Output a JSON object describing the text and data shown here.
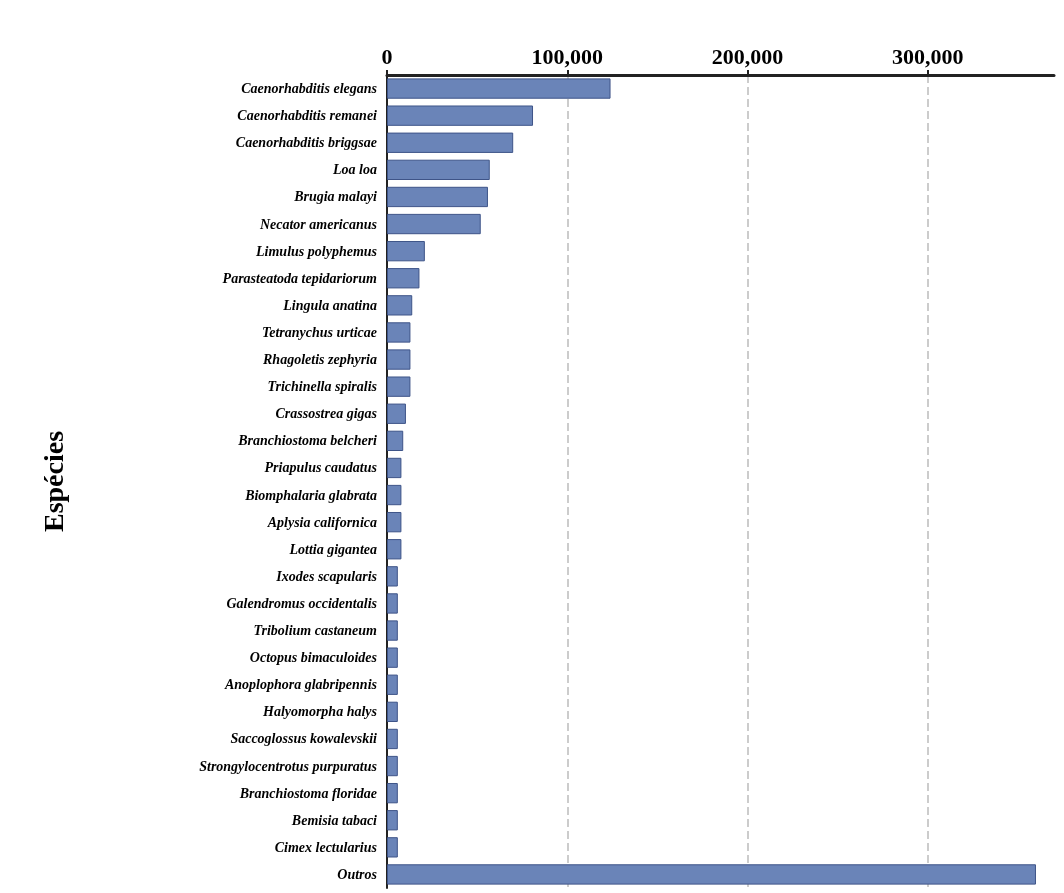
{
  "chart_data": {
    "type": "bar",
    "orientation": "horizontal",
    "ylabel": "Espécies",
    "categories": [
      "Caenorhabditis elegans",
      "Caenorhabditis remanei",
      "Caenorhabditis briggsae",
      "Loa loa",
      "Brugia malayi",
      "Necator americanus",
      "Limulus polyphemus",
      "Parasteatoda tepidariorum",
      "Lingula anatina",
      "Tetranychus urticae",
      "Rhagoletis zephyria",
      "Trichinella spiralis",
      "Crassostrea gigas",
      "Branchiostoma belcheri",
      "Priapulus caudatus",
      "Biomphalaria glabrata",
      "Aplysia californica",
      "Lottia gigantea",
      "Ixodes scapularis",
      "Galendromus occidentalis",
      "Tribolium castaneum",
      "Octopus bimaculoides",
      "Anoplophora glabripennis",
      "Halyomorpha halys",
      "Saccoglossus kowalevskii",
      "Strongylocentrotus purpuratus",
      "Branchiostoma floridae",
      "Bemisia tabaci",
      "Cimex lectularius",
      "Outros"
    ],
    "values": [
      124000,
      81000,
      70000,
      57000,
      56000,
      52000,
      21000,
      18000,
      14000,
      13000,
      13000,
      13000,
      10500,
      9000,
      8000,
      8000,
      8000,
      8000,
      6000,
      6000,
      6000,
      6000,
      6000,
      6000,
      6000,
      6000,
      6000,
      6000,
      6000,
      360000
    ],
    "color": "#6a84b8",
    "xlim": [
      0,
      370000
    ],
    "xticks": [
      0,
      {
        "value": 100000,
        "label": "100,000"
      },
      {
        "value": 200000,
        "label": "200,000"
      },
      {
        "value": 300000,
        "label": "300,000"
      }
    ],
    "grid": "x"
  }
}
